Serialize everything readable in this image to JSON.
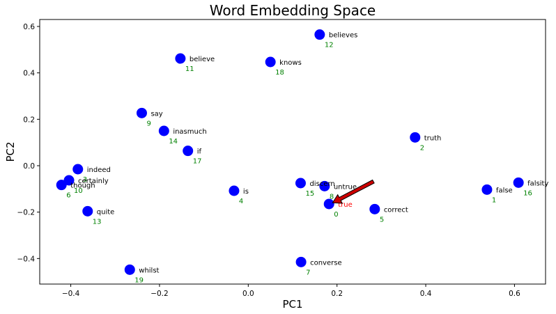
{
  "chart_data": {
    "type": "scatter",
    "title": "Word Embedding Space",
    "xlabel": "PC1",
    "ylabel": "PC2",
    "xlim": [
      -0.47,
      0.67
    ],
    "ylim": [
      -0.51,
      0.63
    ],
    "xticks": [
      -0.4,
      -0.2,
      0.0,
      0.2,
      0.4,
      0.6
    ],
    "xtick_labels": [
      "−0.4",
      "−0.2",
      "0.0",
      "0.2",
      "0.4",
      "0.6"
    ],
    "yticks": [
      -0.4,
      -0.2,
      0.0,
      0.2,
      0.4,
      0.6
    ],
    "ytick_labels": [
      "−0.4",
      "−0.2",
      "0.0",
      "0.2",
      "0.4",
      "0.6"
    ],
    "grid": false,
    "point_color": "#0000ff",
    "word_color": "#000000",
    "index_color": "#008000",
    "highlight_color": "#ff0000",
    "arrow_color": "#cc0000",
    "points": [
      {
        "word": "true",
        "index": "0",
        "x": 0.182,
        "y": -0.165,
        "highlight": true
      },
      {
        "word": "false",
        "index": "1",
        "x": 0.538,
        "y": -0.103
      },
      {
        "word": "truth",
        "index": "2",
        "x": 0.376,
        "y": 0.122
      },
      {
        "word": "indeed",
        "index": "3",
        "x": -0.384,
        "y": -0.015
      },
      {
        "word": "is",
        "index": "4",
        "x": -0.032,
        "y": -0.108
      },
      {
        "word": "correct",
        "index": "5",
        "x": 0.285,
        "y": -0.187
      },
      {
        "word": "though",
        "index": "6",
        "x": -0.421,
        "y": -0.083
      },
      {
        "word": "converse",
        "index": "7",
        "x": 0.119,
        "y": -0.415
      },
      {
        "word": "untrue",
        "index": "8",
        "x": 0.172,
        "y": -0.088
      },
      {
        "word": "say",
        "index": "9",
        "x": -0.24,
        "y": 0.227
      },
      {
        "word": "certainly",
        "index": "10",
        "x": -0.404,
        "y": -0.063
      },
      {
        "word": "believe",
        "index": "11",
        "x": -0.153,
        "y": 0.462
      },
      {
        "word": "believes",
        "index": "12",
        "x": 0.161,
        "y": 0.565
      },
      {
        "word": "quite",
        "index": "13",
        "x": -0.362,
        "y": -0.196
      },
      {
        "word": "inasmuch",
        "index": "14",
        "x": -0.19,
        "y": 0.15
      },
      {
        "word": "discern",
        "index": "15",
        "x": 0.118,
        "y": -0.075
      },
      {
        "word": "falsity",
        "index": "16",
        "x": 0.609,
        "y": -0.073
      },
      {
        "word": "if",
        "index": "17",
        "x": -0.136,
        "y": 0.064
      },
      {
        "word": "knows",
        "index": "18",
        "x": 0.05,
        "y": 0.447
      },
      {
        "word": "whilst",
        "index": "19",
        "x": -0.267,
        "y": -0.448
      }
    ],
    "arrow": {
      "from": [
        0.282,
        -0.068
      ],
      "to": [
        0.19,
        -0.16
      ]
    }
  }
}
